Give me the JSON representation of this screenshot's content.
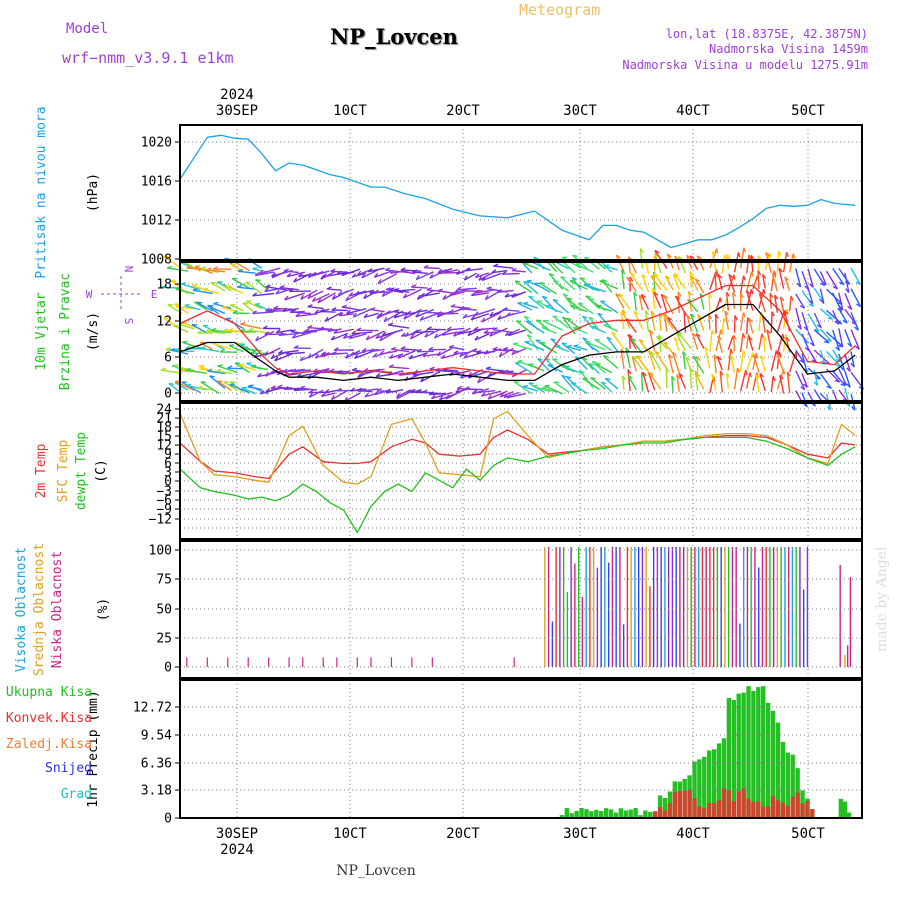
{
  "header": {
    "model_label": "Model",
    "model_name": "wrf−nmm_v3.9.1 e1km",
    "title": "NP_Lovcen",
    "subtitle": "Meteogram",
    "coords": "lon,lat (18.8375E, 42.3875N)",
    "altitude": "Nadmorska Visina 1459m",
    "model_altitude": "Nadmorska Visina u modelu 1275.91m",
    "watermark": "made by Angel",
    "footer_station": "NP_Lovcen"
  },
  "colors": {
    "pressure": "#1aa3e6",
    "purple": "#a040d8",
    "title_orange": "#f0c060",
    "green": "#22c020",
    "red": "#e83030",
    "orange": "#f08030",
    "blue": "#3030e0",
    "cyan": "#20c0c0",
    "magenta": "#d0208a",
    "sfc": "#e0a020",
    "grid": "#808080"
  },
  "chart_data": {
    "time_axis": {
      "ticks": [
        "30SEP",
        "10CT",
        "20CT",
        "30CT",
        "40CT",
        "50CT"
      ],
      "year": "2024"
    },
    "panels": [
      {
        "id": "pressure",
        "type": "line",
        "ylabel_lines": [
          "Pritisak na nivou mora",
          "(hPa)"
        ],
        "ylabel_colors": [
          "#1aa3e6",
          "#000000"
        ],
        "yticks": [
          "1020",
          "1016",
          "1012",
          "1008"
        ],
        "ylim": [
          1008,
          1022.5
        ],
        "series": [
          {
            "color": "#1aa3e6",
            "x": [
              0,
              2,
              4,
              6,
              8,
              10,
              12,
              14,
              16,
              18,
              20,
              22,
              24,
              26,
              28,
              30,
              33,
              36,
              40,
              44,
              48,
              52,
              56,
              60,
              62,
              64,
              66,
              68,
              70,
              72,
              74,
              76,
              78,
              80,
              82,
              84,
              86,
              88,
              90,
              92,
              94,
              96,
              99
            ],
            "y": [
              1016.3,
              1018.5,
              1020.7,
              1020.9,
              1020.6,
              1020.5,
              1019.0,
              1017.2,
              1018.0,
              1017.8,
              1017.3,
              1016.8,
              1016.5,
              1016.0,
              1015.5,
              1015.5,
              1014.8,
              1014.3,
              1013.2,
              1012.5,
              1012.3,
              1013.0,
              1011.0,
              1010.0,
              1011.5,
              1011.5,
              1011.0,
              1010.8,
              1010.0,
              1009.2,
              1009.6,
              1010.0,
              1010.0,
              1010.5,
              1011.3,
              1012.2,
              1013.3,
              1013.6,
              1013.5,
              1013.6,
              1014.2,
              1013.8,
              1013.6
            ]
          }
        ]
      },
      {
        "id": "wind",
        "type": "line",
        "ylabel_lines": [
          "10m Vjetar",
          "Brzina i Pravac",
          "(m/s)"
        ],
        "ylabel_colors": [
          "#22c020",
          "#22c020",
          "#000000"
        ],
        "yticks": [
          "18",
          "12",
          "6",
          "0"
        ],
        "ylim": [
          0,
          22
        ],
        "compass": {
          "north": "N",
          "south": "S",
          "east": "E",
          "west": "W"
        },
        "series": [
          {
            "color": "#000000",
            "x": [
              0,
              4,
              8,
              12,
              14,
              16,
              20,
              24,
              28,
              32,
              36,
              40,
              44,
              48,
              52,
              56,
              60,
              64,
              68,
              72,
              76,
              80,
              84,
              88,
              92,
              96,
              99
            ],
            "y": [
              6.5,
              8,
              8,
              5,
              3.5,
              2.5,
              2.5,
              2,
              2.5,
              2,
              2.5,
              3,
              2.5,
              2,
              2,
              4.5,
              6,
              6.5,
              6.5,
              9,
              11.5,
              14,
              14,
              9,
              3,
              3.5,
              6
            ]
          },
          {
            "color": "#e83030",
            "x": [
              0,
              4,
              8,
              12,
              14,
              16,
              20,
              24,
              28,
              32,
              36,
              40,
              44,
              48,
              52,
              56,
              60,
              64,
              68,
              72,
              76,
              80,
              84,
              88,
              92,
              96,
              99
            ],
            "y": [
              11,
              13,
              11,
              6,
              4,
              3,
              3.5,
              3,
              3.5,
              3,
              3.5,
              4,
              3.5,
              3,
              3,
              9,
              11,
              11.5,
              11.5,
              13,
              15,
              17,
              17,
              13,
              5,
              4.5,
              7.5
            ]
          }
        ]
      },
      {
        "id": "temperature",
        "type": "line",
        "ylabel_lines": [
          "2m Temp",
          "SFC Temp",
          "dewpt Temp",
          "(C)"
        ],
        "ylabel_colors": [
          "#e83030",
          "#e0a020",
          "#22c020",
          "#000000"
        ],
        "yticks": [
          "24",
          "21",
          "18",
          "15",
          "12",
          "9",
          "6",
          "3",
          "0",
          "−3",
          "−6",
          "−9",
          "−12"
        ],
        "ylim": [
          -13,
          24
        ],
        "series": [
          {
            "name": "2m Temp",
            "color": "#e83030",
            "x": [
              0,
              3,
              5,
              8,
              11,
              13,
              16,
              18,
              21,
              24,
              26,
              28,
              31,
              34,
              36,
              38,
              41,
              44,
              46,
              48,
              51,
              54,
              56,
              59,
              62,
              65,
              68,
              71,
              74,
              77,
              80,
              83,
              86,
              89,
              92,
              95,
              97,
              99
            ],
            "y": [
              13,
              8,
              5.5,
              5,
              4,
              3.5,
              10,
              12,
              8,
              7.5,
              7.5,
              8,
              12,
              14,
              13,
              10,
              9.5,
              10,
              14.5,
              16.5,
              14,
              10,
              10.5,
              11,
              12,
              12.5,
              13.5,
              13.5,
              14,
              14.5,
              15,
              15,
              14.5,
              12.5,
              10,
              9,
              13,
              12.5
            ]
          },
          {
            "name": "SFC Temp",
            "color": "#e0a020",
            "x": [
              0,
              3,
              5,
              8,
              11,
              13,
              16,
              18,
              21,
              24,
              26,
              28,
              31,
              34,
              36,
              38,
              41,
              44,
              46,
              48,
              51,
              54,
              56,
              59,
              62,
              65,
              68,
              71,
              74,
              77,
              80,
              83,
              86,
              89,
              92,
              95,
              97,
              99
            ],
            "y": [
              21,
              8,
              4.5,
              4,
              3,
              2.5,
              15,
              17.5,
              7,
              2.5,
              2,
              4,
              18,
              19.5,
              13,
              5,
              4.5,
              4,
              19.5,
              21.5,
              15,
              9,
              10,
              11,
              12,
              12.5,
              13.5,
              13.5,
              14,
              15,
              15.5,
              15.5,
              15,
              12.5,
              9,
              7.5,
              18,
              15
            ]
          },
          {
            "name": "dewpt Temp",
            "color": "#22c020",
            "x": [
              0,
              3,
              5,
              8,
              10,
              12,
              14,
              16,
              18,
              20,
              22,
              24,
              26,
              28,
              30,
              32,
              34,
              36,
              38,
              40,
              42,
              44,
              46,
              48,
              51,
              54,
              56,
              59,
              62,
              65,
              68,
              71,
              74,
              77,
              80,
              83,
              86,
              89,
              92,
              95,
              97,
              99
            ],
            "y": [
              6,
              1,
              0,
              -1,
              -2,
              -1.5,
              -2.5,
              -1,
              2,
              0,
              -3,
              -5,
              -11,
              -4,
              0,
              2,
              0,
              5,
              3,
              1,
              6,
              3,
              7,
              9,
              8,
              9.5,
              10,
              11,
              11.5,
              12.5,
              13,
              13,
              14,
              14.5,
              14.5,
              14.5,
              13.5,
              11.5,
              9,
              7,
              10,
              12
            ]
          }
        ]
      },
      {
        "id": "clouds",
        "type": "bar",
        "ylabel_lines": [
          "Visoka Oblacnost",
          "Srednja Oblacnost",
          "Niska Oblacnost",
          "(%)"
        ],
        "ylabel_colors": [
          "#1aa3e6",
          "#e0a020",
          "#d0208a",
          "#000000"
        ],
        "yticks": [
          "100",
          "75",
          "50",
          "25",
          "0"
        ],
        "ylim": [
          0,
          105
        ]
      },
      {
        "id": "precip",
        "type": "bar",
        "ylabel_lines": [
          "1hr Precip (mm)"
        ],
        "ylabel_colors": [
          "#000000"
        ],
        "yticks": [
          "12.72",
          "9.54",
          "6.36",
          "3.18",
          "0"
        ],
        "ylim": [
          0,
          16
        ],
        "legend": [
          {
            "label": "Ukupna Kisa",
            "color": "#22c020"
          },
          {
            "label": "Konvek.Kisa",
            "color": "#e83030"
          },
          {
            "label": "Zaledj.Kisa",
            "color": "#f08030"
          },
          {
            "label": "Snijeg",
            "color": "#3030e0"
          },
          {
            "label": "Grad",
            "color": "#20c0c0"
          }
        ]
      }
    ]
  }
}
